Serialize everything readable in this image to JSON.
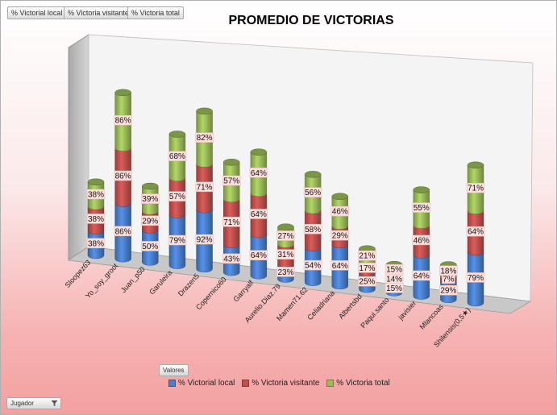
{
  "field_buttons": [
    "% Victorial local",
    "% Victoria visitante",
    "% Victoria total"
  ],
  "valores_label": "Valores",
  "jugador_label": "Jugador",
  "colors": {
    "local": "#4a7fcc",
    "visitante": "#c0504d",
    "total": "#9bbb59",
    "label_bg": "#fde0dd"
  },
  "chart_data": {
    "type": "bar",
    "stacked": true,
    "title": "PROMEDIO DE VICTORIAS",
    "categories": [
      "Sloopez63",
      "Yo_soy_groot",
      "Juan_p50",
      "Garuleira",
      "Drazen5",
      "Copernico60",
      "Garryalf",
      "Aurelio.Diaz.79",
      "Mamen71.62",
      "Celiadriana",
      "Albertsbd",
      "Paqui.santo",
      "javisier",
      "Mlancoas",
      "Shilensis(0,5★)"
    ],
    "series": [
      {
        "name": "% Victorial local",
        "values": [
          38,
          86,
          50,
          79,
          92,
          43,
          64,
          23,
          54,
          64,
          25,
          15,
          64,
          29,
          79
        ]
      },
      {
        "name": "% Victoria visitante",
        "values": [
          38,
          86,
          29,
          57,
          71,
          71,
          64,
          31,
          58,
          29,
          17,
          14,
          46,
          7,
          64
        ]
      },
      {
        "name": "% Victoria total",
        "values": [
          38,
          86,
          39,
          68,
          82,
          57,
          64,
          27,
          56,
          46,
          21,
          15,
          55,
          18,
          71
        ]
      }
    ],
    "legend_position": "bottom"
  }
}
